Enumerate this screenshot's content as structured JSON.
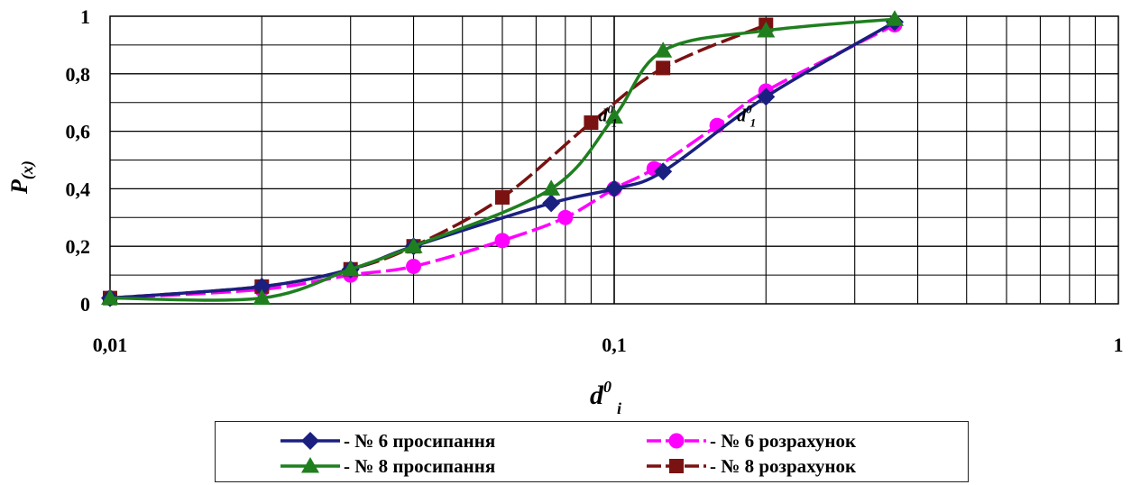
{
  "chart_data": {
    "type": "line",
    "xscale": "log",
    "xlim": [
      0.01,
      1
    ],
    "ylim": [
      0,
      1
    ],
    "x_ticks": [
      "0,01",
      "0,1",
      "1"
    ],
    "y_ticks": [
      "0",
      "0,2",
      "0,4",
      "0,6",
      "0,8",
      "1"
    ],
    "xlabel": {
      "main": "d",
      "sup": "0",
      "sub": "i"
    },
    "ylabel": {
      "main": "P",
      "sub": "(x)"
    },
    "annotations": [
      {
        "main": "d",
        "sup": "0",
        "sub": "1",
        "x": 0.085,
        "y": 0.635
      },
      {
        "main": "d",
        "sup": "0",
        "sub": "1",
        "x": 0.16,
        "y": 0.635
      }
    ],
    "grid": true,
    "legend_position": "bottom",
    "series": [
      {
        "name": "- № 6 просипання",
        "color": "#1a1f80",
        "marker": "diamond",
        "dashed": false,
        "x": [
          0.01,
          0.02,
          0.03,
          0.04,
          0.075,
          0.1,
          0.125,
          0.2,
          0.36
        ],
        "y": [
          0.02,
          0.06,
          0.12,
          0.2,
          0.35,
          0.4,
          0.46,
          0.72,
          0.98
        ]
      },
      {
        "name": "- № 6 розрахунок",
        "color": "#ff00ff",
        "marker": "circle",
        "dashed": true,
        "x": [
          0.01,
          0.02,
          0.03,
          0.04,
          0.06,
          0.08,
          0.1,
          0.12,
          0.16,
          0.2,
          0.36
        ],
        "y": [
          0.02,
          0.05,
          0.1,
          0.13,
          0.22,
          0.3,
          0.4,
          0.47,
          0.62,
          0.74,
          0.97
        ]
      },
      {
        "name": "- № 8 просипання",
        "color": "#1f7f1f",
        "marker": "triangle",
        "dashed": false,
        "x": [
          0.01,
          0.02,
          0.03,
          0.04,
          0.075,
          0.1,
          0.125,
          0.2,
          0.36
        ],
        "y": [
          0.02,
          0.02,
          0.12,
          0.2,
          0.4,
          0.65,
          0.88,
          0.95,
          0.99
        ]
      },
      {
        "name": "- № 8 розрахунок",
        "color": "#7a1212",
        "marker": "square",
        "dashed": true,
        "x": [
          0.01,
          0.02,
          0.03,
          0.04,
          0.06,
          0.09,
          0.125,
          0.2
        ],
        "y": [
          0.02,
          0.06,
          0.12,
          0.2,
          0.37,
          0.63,
          0.82,
          0.97
        ]
      }
    ]
  }
}
